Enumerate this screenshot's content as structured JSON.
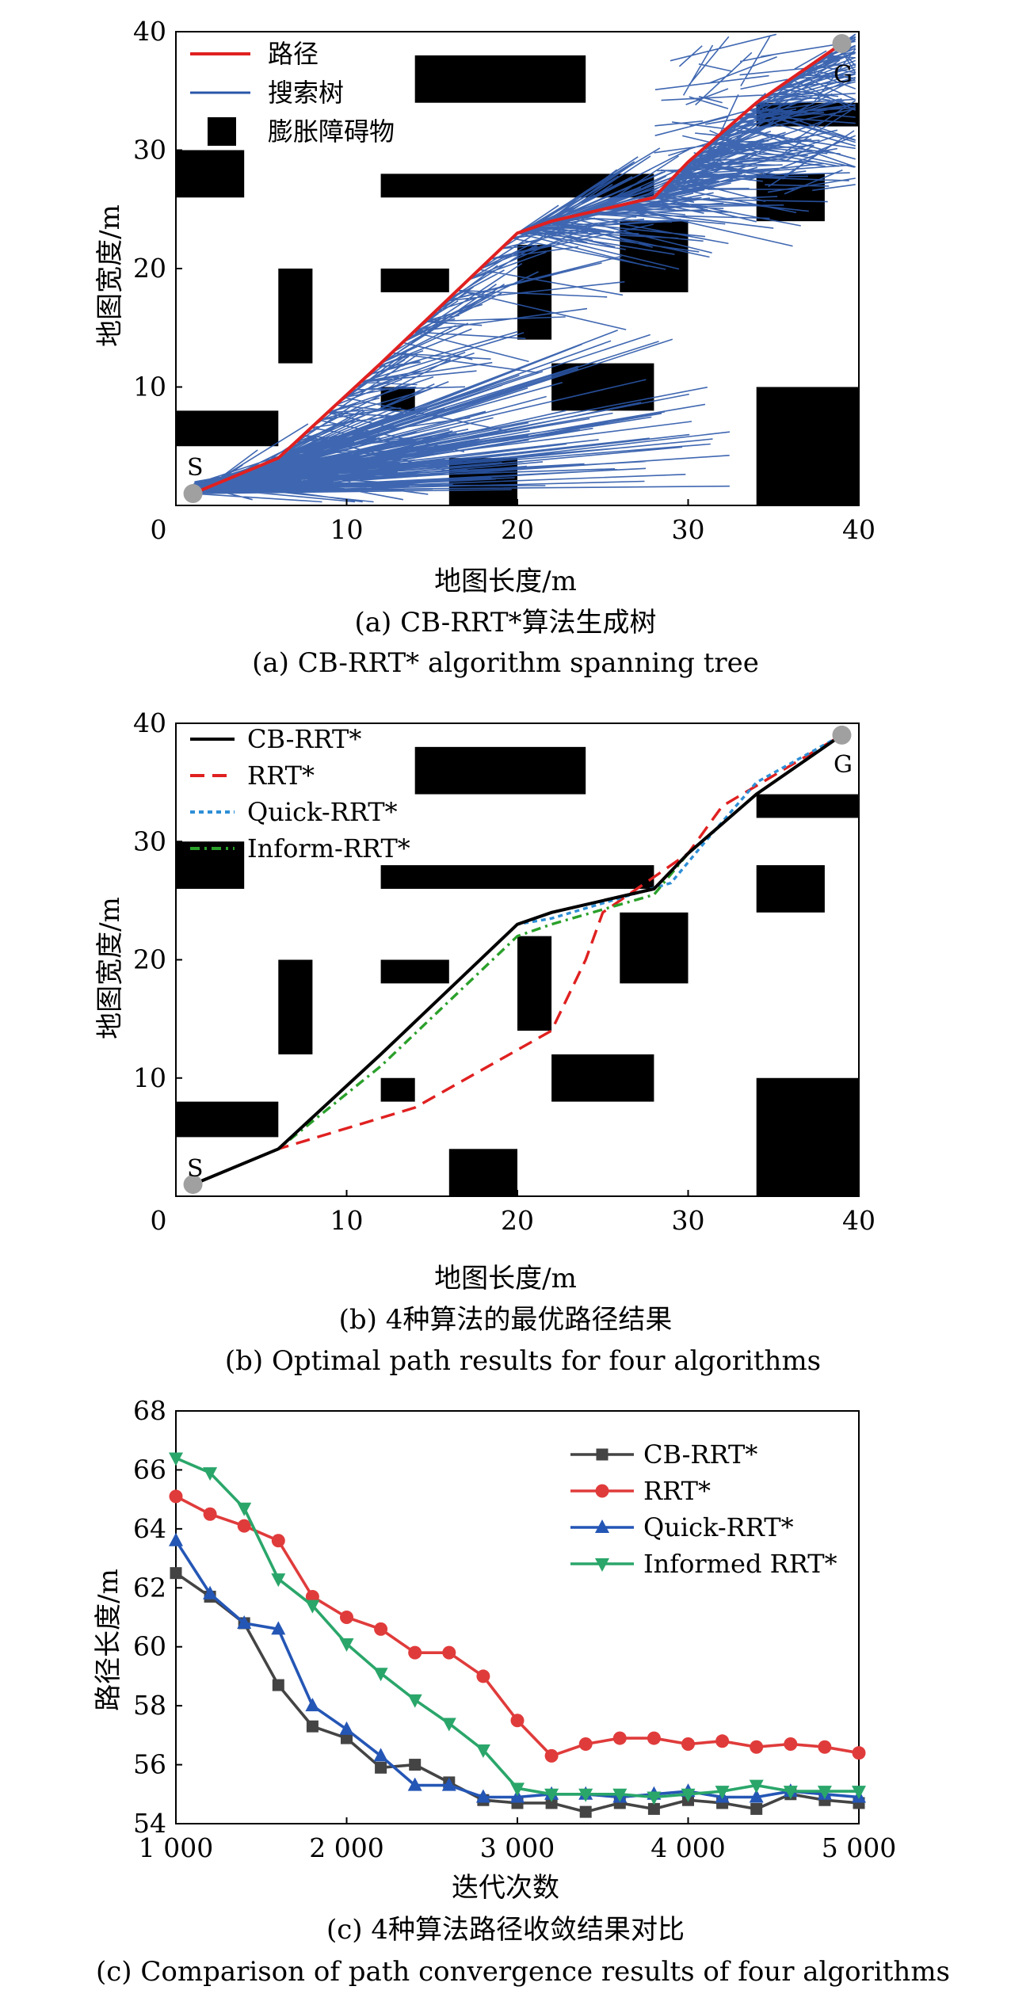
{
  "figure": {
    "panel_a": {
      "caption_cn": "(a) CB-RRT*算法生成树",
      "caption_en": "(a) CB-RRT* algorithm spanning tree",
      "xlabel": "地图长度/m",
      "ylabel": "地图宽度/m",
      "legend": {
        "path": "路径",
        "tree": "搜索树",
        "obstacle": "膨胀障碍物"
      },
      "start_label": "S",
      "goal_label": "G"
    },
    "panel_b": {
      "caption_cn": "(b) 4种算法的最优路径结果",
      "caption_en": "(b) Optimal path results for four algorithms",
      "xlabel": "地图长度/m",
      "ylabel": "地图宽度/m",
      "start_label": "S",
      "goal_label": "G"
    },
    "panel_c": {
      "caption_cn": "(c) 4种算法路径收敛结果对比",
      "caption_en": "(c) Comparison of path convergence results of four algorithms",
      "xlabel": "迭代次数",
      "ylabel": "路径长度/m"
    }
  },
  "chart_data": [
    {
      "type": "scatter",
      "panel": "a",
      "title": "(a) CB-RRT*算法生成树",
      "xlabel": "地图长度/m",
      "ylabel": "地图宽度/m",
      "xlim": [
        0,
        40
      ],
      "ylim": [
        0,
        40
      ],
      "xticks": [
        "0",
        "10",
        "20",
        "30",
        "40"
      ],
      "yticks": [
        "10",
        "20",
        "30",
        "40"
      ],
      "legend_position": "top-left",
      "colors": {
        "path": "#e02020",
        "tree": "#2a56a8",
        "obstacle": "#000000",
        "endpoint": "#a0a0a0"
      },
      "start": [
        1,
        1
      ],
      "goal": [
        39,
        39
      ],
      "obstacles": [
        {
          "x0": 0,
          "x1": 4,
          "y0": 26,
          "y1": 30
        },
        {
          "x0": 0,
          "x1": 6,
          "y0": 5,
          "y1": 8
        },
        {
          "x0": 6,
          "x1": 8,
          "y0": 12,
          "y1": 20
        },
        {
          "x0": 12,
          "x1": 16,
          "y0": 18,
          "y1": 20
        },
        {
          "x0": 12,
          "x1": 14,
          "y0": 8,
          "y1": 10
        },
        {
          "x0": 12,
          "x1": 28,
          "y0": 26,
          "y1": 28
        },
        {
          "x0": 14,
          "x1": 24,
          "y0": 34,
          "y1": 38
        },
        {
          "x0": 16,
          "x1": 20,
          "y0": 0,
          "y1": 4
        },
        {
          "x0": 20,
          "x1": 22,
          "y0": 14,
          "y1": 22
        },
        {
          "x0": 22,
          "x1": 28,
          "y0": 8,
          "y1": 12
        },
        {
          "x0": 26,
          "x1": 30,
          "y0": 18,
          "y1": 24
        },
        {
          "x0": 34,
          "x1": 38,
          "y0": 24,
          "y1": 28
        },
        {
          "x0": 34,
          "x1": 40,
          "y0": 32,
          "y1": 34
        },
        {
          "x0": 34,
          "x1": 40,
          "y0": 0,
          "y1": 10
        }
      ],
      "series": [
        {
          "name": "路径",
          "x": [
            1,
            6,
            12,
            20,
            22,
            28,
            30,
            34,
            39
          ],
          "y": [
            1,
            4,
            12,
            23,
            24,
            26,
            29,
            34,
            39
          ]
        }
      ]
    },
    {
      "type": "line",
      "panel": "b",
      "title": "(b) 4种算法的最优路径结果",
      "xlabel": "地图长度/m",
      "ylabel": "地图宽度/m",
      "xlim": [
        0,
        40
      ],
      "ylim": [
        0,
        40
      ],
      "xticks": [
        "0",
        "10",
        "20",
        "30",
        "40"
      ],
      "yticks": [
        "10",
        "20",
        "30",
        "40"
      ],
      "legend_position": "top-left",
      "series": [
        {
          "name": "CB-RRT*",
          "color": "#000000",
          "dash": "solid",
          "x": [
            1,
            6,
            12,
            20,
            22,
            28,
            30,
            34,
            39
          ],
          "y": [
            1,
            4,
            12,
            23,
            24,
            26,
            29,
            34,
            39
          ]
        },
        {
          "name": "RRT*",
          "color": "#e02020",
          "dash": "dashed",
          "x": [
            1,
            6,
            14,
            22,
            24,
            25,
            30,
            32,
            39
          ],
          "y": [
            1,
            4,
            7.5,
            14,
            20,
            24,
            29,
            33,
            39
          ]
        },
        {
          "name": "Quick-RRT*",
          "color": "#2e8fd6",
          "dash": "dotted",
          "x": [
            1,
            6,
            12,
            20,
            22,
            29,
            31,
            34,
            39
          ],
          "y": [
            1,
            4,
            12,
            23,
            23.5,
            26.5,
            30,
            35,
            39
          ]
        },
        {
          "name": "Inform-RRT*",
          "color": "#2aa02a",
          "dash": "dashdot",
          "x": [
            1,
            6,
            12,
            20,
            22,
            28,
            30,
            34,
            39
          ],
          "y": [
            1,
            4,
            11,
            22,
            23,
            25.5,
            29,
            34,
            39
          ]
        }
      ]
    },
    {
      "type": "line",
      "panel": "c",
      "title": "(c) 4种算法路径收敛结果对比",
      "xlabel": "迭代次数",
      "ylabel": "路径长度/m",
      "xlim": [
        1000,
        5000
      ],
      "ylim": [
        54,
        68
      ],
      "xticks": [
        "1 000",
        "2 000",
        "3 000",
        "4 000",
        "5 000"
      ],
      "yticks": [
        "54",
        "56",
        "58",
        "60",
        "62",
        "64",
        "66",
        "68"
      ],
      "legend_position": "top-right",
      "x": [
        1000,
        1200,
        1400,
        1600,
        1800,
        2000,
        2200,
        2400,
        2600,
        2800,
        3000,
        3200,
        3400,
        3600,
        3800,
        4000,
        4200,
        4400,
        4600,
        4800,
        5000
      ],
      "series": [
        {
          "name": "CB-RRT*",
          "color": "#444444",
          "marker": "square",
          "values": [
            62.5,
            61.7,
            60.8,
            58.7,
            57.3,
            56.9,
            55.9,
            56.0,
            55.4,
            54.8,
            54.7,
            54.7,
            54.4,
            54.7,
            54.5,
            54.8,
            54.7,
            54.5,
            55.0,
            54.8,
            54.7
          ]
        },
        {
          "name": "RRT*",
          "color": "#e03b3b",
          "marker": "circle",
          "values": [
            65.1,
            64.5,
            64.1,
            63.6,
            61.7,
            61.0,
            60.6,
            59.8,
            59.8,
            59.0,
            57.5,
            56.3,
            56.7,
            56.9,
            56.9,
            56.7,
            56.8,
            56.6,
            56.7,
            56.6,
            56.4
          ]
        },
        {
          "name": "Quick-RRT*",
          "color": "#2456b5",
          "marker": "triangle-up",
          "values": [
            63.6,
            61.8,
            60.8,
            60.6,
            58.0,
            57.2,
            56.3,
            55.3,
            55.3,
            54.9,
            54.9,
            55.0,
            55.0,
            54.9,
            55.0,
            55.1,
            54.9,
            54.9,
            55.1,
            55.0,
            54.9
          ]
        },
        {
          "name": "Informed RRT*",
          "color": "#2aa66a",
          "marker": "triangle-down",
          "values": [
            66.4,
            65.9,
            64.7,
            62.3,
            61.4,
            60.1,
            59.1,
            58.2,
            57.4,
            56.5,
            55.2,
            55.0,
            55.0,
            55.0,
            54.9,
            55.0,
            55.1,
            55.3,
            55.1,
            55.1,
            55.1
          ]
        }
      ]
    }
  ]
}
